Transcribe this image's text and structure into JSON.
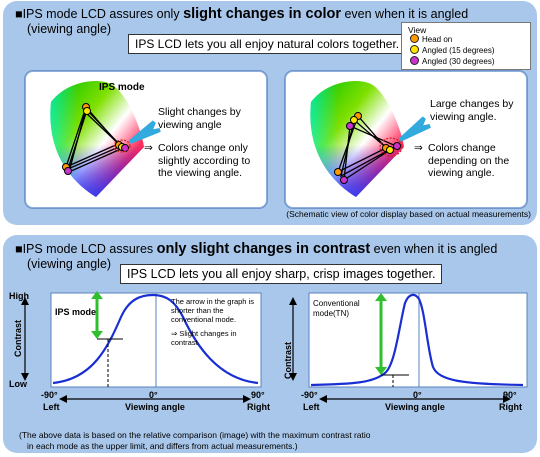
{
  "color": {
    "heading_pre": "IPS mode LCD assures only ",
    "heading_bold": "slight changes in color",
    "heading_post": " even when it is angled",
    "heading_line2": "(viewing angle)",
    "message": "IPS LCD lets you all enjoy natural colors together.",
    "legend": {
      "title": "View",
      "items": [
        {
          "label": "Head on",
          "color": "#ff9a00"
        },
        {
          "label": "Angled (15 degrees)",
          "color": "#ffe600"
        },
        {
          "label": "Angled (30 degrees)",
          "color": "#cc33cc"
        }
      ]
    },
    "left_title": "IPS mode",
    "left_text1": "Slight changes by viewing angle",
    "left_text2_arrow": "⇒",
    "left_text2": "Colors change only slightly according to the viewing angle.",
    "right_text1": "Large changes by viewing angle.",
    "right_text2_arrow": "⇒",
    "right_text2": "Colors change depending on the viewing angle.",
    "note": "(Schematic view of color display based on actual measurements)"
  },
  "contrast": {
    "heading_pre": "IPS mode LCD assures ",
    "heading_bold": "only slight changes in contrast",
    "heading_post": " even when it is angled",
    "heading_line2": "(viewing angle)",
    "message": "IPS LCD lets you all enjoy sharp, crisp images together.",
    "y_high": "High",
    "y_low": "Low",
    "y_label": "Contrast",
    "x_label": "Viewing angle",
    "x_left_val": "-90°",
    "x_left": "Left",
    "x_mid": "0°",
    "x_right_val": "90°",
    "x_right": "Right",
    "left_mode": "IPS mode",
    "left_note1": "The arrow in the graph is shorter than the conventional mode.",
    "left_note2": "⇒ Slight changes in contrast",
    "right_mode": "Conventional mode(TN)",
    "note_line1": "(The above data is based on the relative comparison (image) with the maximum contrast ratio",
    "note_line2": "in each mode as the upper limit, and differs from actual measurements.)"
  },
  "colors": {
    "panel": "#a9c7ea",
    "curve": "#1a2fd1",
    "arrow": "#2fbf2f",
    "callout": "#33aadd"
  }
}
